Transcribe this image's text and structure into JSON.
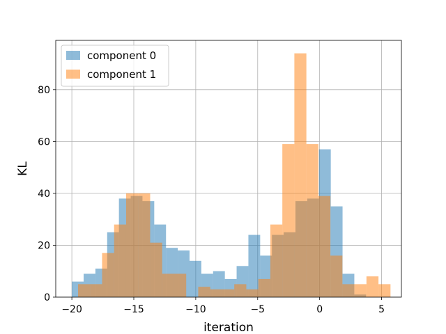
{
  "chart_data": {
    "type": "bar",
    "title": "",
    "xlabel": "iteration",
    "ylabel": "KL",
    "xlim": [
      -21.3,
      6.6
    ],
    "ylim": [
      0,
      99
    ],
    "x_ticks": [
      -20,
      -15,
      -10,
      -5,
      0,
      5
    ],
    "y_ticks": [
      0,
      20,
      40,
      60,
      80
    ],
    "grid": true,
    "legend_position": "top-left",
    "series": [
      {
        "name": "component 0",
        "color": "#1f77b4",
        "alpha": 0.5,
        "bins": [
          {
            "x0": -20.0,
            "x1": -19.05,
            "count": 6
          },
          {
            "x0": -19.05,
            "x1": -18.1,
            "count": 9
          },
          {
            "x0": -18.1,
            "x1": -17.15,
            "count": 11
          },
          {
            "x0": -17.15,
            "x1": -16.2,
            "count": 25
          },
          {
            "x0": -16.2,
            "x1": -15.25,
            "count": 38
          },
          {
            "x0": -15.25,
            "x1": -14.3,
            "count": 39
          },
          {
            "x0": -14.3,
            "x1": -13.35,
            "count": 37
          },
          {
            "x0": -13.35,
            "x1": -12.4,
            "count": 28
          },
          {
            "x0": -12.4,
            "x1": -11.45,
            "count": 19
          },
          {
            "x0": -11.45,
            "x1": -10.5,
            "count": 18
          },
          {
            "x0": -10.5,
            "x1": -9.55,
            "count": 14
          },
          {
            "x0": -9.55,
            "x1": -8.6,
            "count": 9
          },
          {
            "x0": -8.6,
            "x1": -7.65,
            "count": 10
          },
          {
            "x0": -7.65,
            "x1": -6.7,
            "count": 7
          },
          {
            "x0": -6.7,
            "x1": -5.75,
            "count": 12
          },
          {
            "x0": -5.75,
            "x1": -4.8,
            "count": 24
          },
          {
            "x0": -4.8,
            "x1": -3.85,
            "count": 16
          },
          {
            "x0": -3.85,
            "x1": -2.9,
            "count": 24
          },
          {
            "x0": -2.9,
            "x1": -1.95,
            "count": 25
          },
          {
            "x0": -1.95,
            "x1": -1.0,
            "count": 37
          },
          {
            "x0": -1.0,
            "x1": -0.05,
            "count": 38
          },
          {
            "x0": -0.05,
            "x1": 0.9,
            "count": 57
          },
          {
            "x0": 0.9,
            "x1": 1.85,
            "count": 35
          },
          {
            "x0": 1.85,
            "x1": 2.8,
            "count": 9
          },
          {
            "x0": 2.8,
            "x1": 3.75,
            "count": 1
          }
        ]
      },
      {
        "name": "component 1",
        "color": "#ff7f0e",
        "alpha": 0.5,
        "bins": [
          {
            "x0": -19.5,
            "x1": -18.53,
            "count": 5
          },
          {
            "x0": -18.53,
            "x1": -17.56,
            "count": 5
          },
          {
            "x0": -17.56,
            "x1": -16.59,
            "count": 17
          },
          {
            "x0": -16.59,
            "x1": -15.62,
            "count": 28
          },
          {
            "x0": -15.62,
            "x1": -14.65,
            "count": 40
          },
          {
            "x0": -14.65,
            "x1": -13.68,
            "count": 40
          },
          {
            "x0": -13.68,
            "x1": -12.71,
            "count": 21
          },
          {
            "x0": -12.71,
            "x1": -11.74,
            "count": 9
          },
          {
            "x0": -11.74,
            "x1": -10.77,
            "count": 9
          },
          {
            "x0": -10.77,
            "x1": -9.8,
            "count": 0
          },
          {
            "x0": -9.8,
            "x1": -8.83,
            "count": 4
          },
          {
            "x0": -8.83,
            "x1": -7.86,
            "count": 3
          },
          {
            "x0": -7.86,
            "x1": -6.89,
            "count": 3
          },
          {
            "x0": -6.89,
            "x1": -5.92,
            "count": 5
          },
          {
            "x0": -5.92,
            "x1": -4.95,
            "count": 3
          },
          {
            "x0": -4.95,
            "x1": -3.98,
            "count": 7
          },
          {
            "x0": -3.98,
            "x1": -3.01,
            "count": 28
          },
          {
            "x0": -3.01,
            "x1": -2.04,
            "count": 59
          },
          {
            "x0": -2.04,
            "x1": -1.07,
            "count": 94
          },
          {
            "x0": -1.07,
            "x1": -0.1,
            "count": 59
          },
          {
            "x0": -0.1,
            "x1": 0.87,
            "count": 39
          },
          {
            "x0": 0.87,
            "x1": 1.84,
            "count": 16
          },
          {
            "x0": 1.84,
            "x1": 2.81,
            "count": 5
          },
          {
            "x0": 2.81,
            "x1": 3.78,
            "count": 5
          },
          {
            "x0": 3.78,
            "x1": 4.75,
            "count": 8
          },
          {
            "x0": 4.75,
            "x1": 5.72,
            "count": 5
          }
        ]
      }
    ]
  }
}
